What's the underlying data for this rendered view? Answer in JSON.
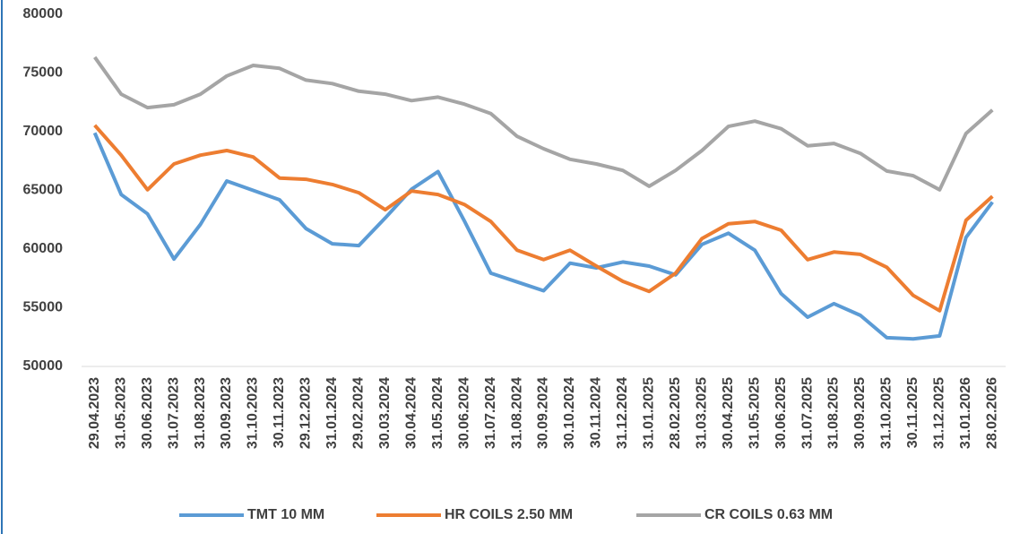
{
  "chart_data": {
    "type": "line",
    "categories": [
      "29.04.2023",
      "31.05.2023",
      "30.06.2023",
      "31.07.2023",
      "31.08.2023",
      "30.09.2023",
      "31.10.2023",
      "30.11.2023",
      "29.12.2023",
      "31.01.2024",
      "29.02.2024",
      "30.03.2024",
      "30.04.2024",
      "31.05.2024",
      "30.06.2024",
      "31.07.2024",
      "31.08.2024",
      "30.09.2024",
      "30.10.2024",
      "30.11.2024",
      "31.12.2024",
      "31.01.2025",
      "28.02.2025",
      "31.03.2025",
      "30.04.2025",
      "31.05.2025",
      "30.06.2025",
      "31.07.2025",
      "31.08.2025",
      "30.09.2025",
      "31.10.2025",
      "30.11.2025",
      "31.12.2025",
      "31.01.2026",
      "28.02.2026"
    ],
    "series": [
      {
        "name": "TMT 10 MM",
        "color": "#5b9bd5",
        "values": [
          69900,
          64650,
          63000,
          59150,
          62100,
          65800,
          65000,
          64200,
          61750,
          60450,
          60300,
          62650,
          65100,
          66600,
          62400,
          57950,
          57200,
          56450,
          58800,
          58400,
          58900,
          58550,
          57800,
          60400,
          61350,
          59900,
          56200,
          54200,
          55350,
          54350,
          52450,
          52350,
          52600,
          61000,
          64000
        ]
      },
      {
        "name": "HR COILS 2.50 MM",
        "color": "#ed7d31",
        "values": [
          70550,
          68000,
          65050,
          67250,
          68000,
          68400,
          67850,
          66050,
          65950,
          65500,
          64800,
          63350,
          64950,
          64650,
          63800,
          62350,
          59900,
          59100,
          59900,
          58550,
          57250,
          56400,
          57950,
          60900,
          62150,
          62350,
          61600,
          59100,
          59750,
          59550,
          58450,
          56050,
          54750,
          62450,
          64500
        ]
      },
      {
        "name": "CR COILS 0.63 MM",
        "color": "#a5a5a5",
        "values": [
          76350,
          73200,
          72050,
          72300,
          73200,
          74750,
          75650,
          75400,
          74400,
          74100,
          73450,
          73200,
          72650,
          72950,
          72350,
          71550,
          69600,
          68550,
          67650,
          67250,
          66700,
          65350,
          66700,
          68400,
          70450,
          70900,
          70250,
          68800,
          69000,
          68150,
          66650,
          66250,
          65050,
          69850,
          71850
        ]
      }
    ],
    "ylim": [
      50000,
      80000
    ],
    "yticks": [
      50000,
      55000,
      60000,
      65000,
      70000,
      75000,
      80000
    ],
    "grid": false,
    "legend": "bottom"
  }
}
